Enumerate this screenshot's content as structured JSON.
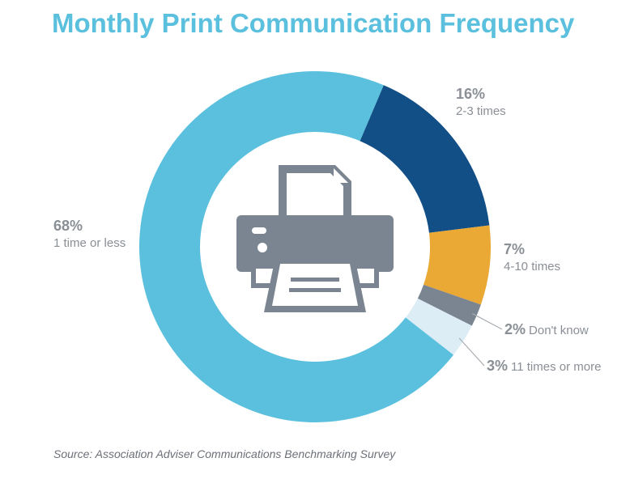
{
  "chart_data": {
    "type": "pie",
    "title": "Monthly Print Communication Frequency",
    "slices": [
      {
        "label": "2-3 times",
        "value": 16,
        "value_label": "16%",
        "color": "#124f86"
      },
      {
        "label": "4-10 times",
        "value": 7,
        "value_label": "7%",
        "color": "#eaa834"
      },
      {
        "label": "Don't know",
        "value": 2,
        "value_label": "2%",
        "color": "#7a8591"
      },
      {
        "label": "11 times or more",
        "value": 3,
        "value_label": "3%",
        "color": "#dcedf6"
      },
      {
        "label": "1 time or less",
        "value": 68,
        "value_label": "68%",
        "color": "#5bc0de"
      }
    ],
    "center_icon": "printer-icon",
    "icon_color": "#7a8591"
  },
  "source": "Source: Association Adviser Communications Benchmarking Survey"
}
